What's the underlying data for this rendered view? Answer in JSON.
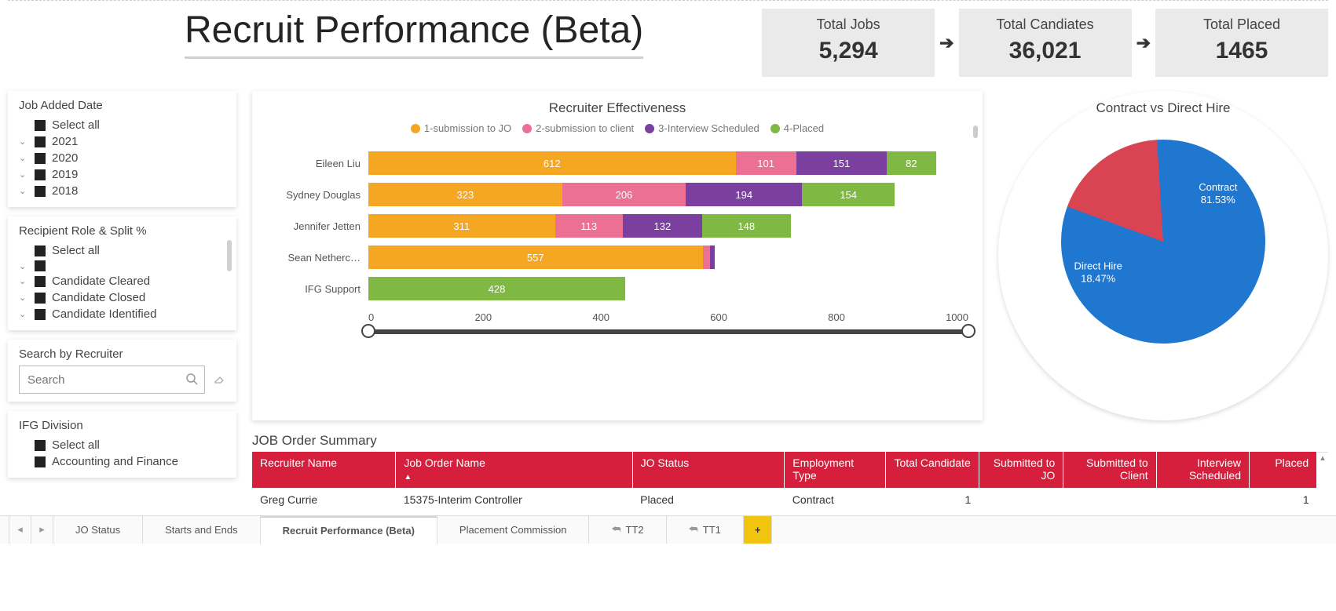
{
  "title": "Recruit Performance (Beta)",
  "colors": {
    "series1": "#f5a623",
    "series2": "#ec6f94",
    "series3": "#7b3fa0",
    "series4": "#7fb842",
    "tableHeader": "#d61f3c",
    "pieContract": "#1f77d0",
    "pieDirect": "#d94452"
  },
  "kpis": [
    {
      "label": "Total Jobs",
      "value": "5,294"
    },
    {
      "label": "Total Candiates",
      "value": "36,021"
    },
    {
      "label": "Total Placed",
      "value": "1465"
    }
  ],
  "filters": {
    "jobAddedDate": {
      "title": "Job Added Date",
      "items": [
        "Select all",
        "2021",
        "2020",
        "2019",
        "2018"
      ]
    },
    "recipientRole": {
      "title": "Recipient Role & Split %",
      "items": [
        "Select all",
        "",
        "Candidate Cleared",
        "Candidate Closed",
        "Candidate Identified"
      ]
    },
    "searchRecruiter": {
      "title": "Search by Recruiter",
      "placeholder": "Search"
    },
    "ifgDivision": {
      "title": "IFG Division",
      "items": [
        "Select all",
        "Accounting and Finance"
      ]
    }
  },
  "barChart": {
    "title": "Recruiter Effectiveness",
    "legend": [
      "1-submission to JO",
      "2-submission to client",
      "3-Interview Scheduled",
      "4-Placed"
    ],
    "xmax": 1000,
    "ticks": [
      "0",
      "200",
      "400",
      "600",
      "800",
      "1000"
    ],
    "rows": [
      {
        "name": "Eileen Liu",
        "vals": [
          612,
          101,
          151,
          82
        ],
        "labels": [
          "612",
          "101",
          "151",
          "82"
        ]
      },
      {
        "name": "Sydney Douglas",
        "vals": [
          323,
          206,
          194,
          154
        ],
        "labels": [
          "323",
          "206",
          "194",
          "154"
        ]
      },
      {
        "name": "Jennifer Jetten",
        "vals": [
          311,
          113,
          132,
          148
        ],
        "labels": [
          "311",
          "113",
          "132",
          "148"
        ]
      },
      {
        "name": "Sean Netherc…",
        "vals": [
          557,
          12,
          8,
          0
        ],
        "labels": [
          "557",
          "",
          "",
          ""
        ]
      },
      {
        "name": "IFG Support",
        "vals": [
          0,
          0,
          0,
          428
        ],
        "labels": [
          "",
          "",
          "",
          "428"
        ]
      }
    ]
  },
  "pieChart": {
    "title": "Contract vs Direct Hire",
    "slices": [
      {
        "label": "Contract",
        "pct": 81.53,
        "display": "Contract\n81.53%"
      },
      {
        "label": "Direct Hire",
        "pct": 18.47,
        "display": "Direct Hire\n18.47%"
      }
    ]
  },
  "table": {
    "title": "JOB Order Summary",
    "columns": [
      "Recruiter Name",
      "Job Order Name",
      "JO Status",
      "Employment Type",
      "Total Candidate",
      "Submitted to JO",
      "Submitted to Client",
      "Interview Scheduled",
      "Placed"
    ],
    "rows": [
      [
        "Greg Currie",
        "15375-Interim Controller",
        "Placed",
        "Contract",
        "1",
        "",
        "",
        "",
        "1"
      ]
    ]
  },
  "tabs": {
    "items": [
      "JO Status",
      "Starts and Ends",
      "Recruit Performance (Beta)",
      "Placement Commission",
      "TT2",
      "TT1"
    ],
    "activeIndex": 2,
    "linked": [
      4,
      5
    ]
  }
}
